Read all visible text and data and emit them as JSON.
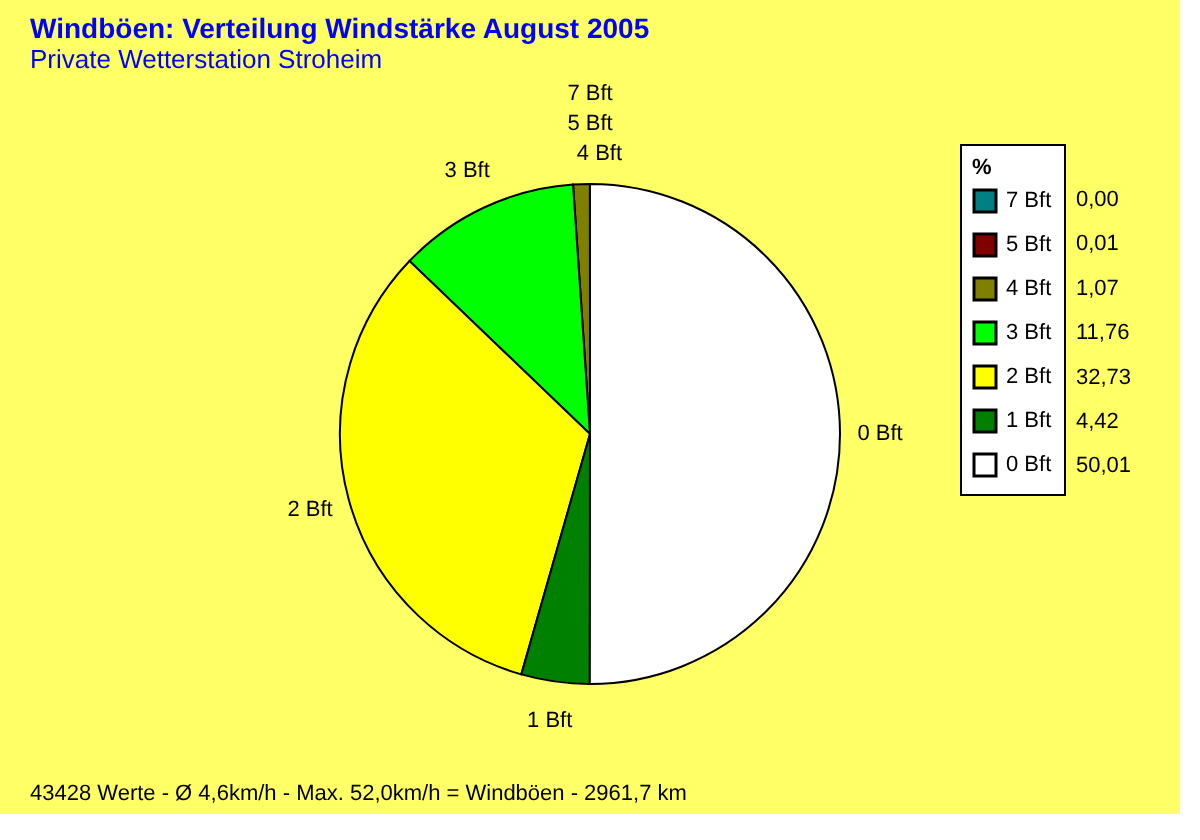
{
  "chart_data": {
    "type": "pie",
    "title": "Windböen: Verteilung Windstärke  August 2005",
    "subtitle": "Private Wetterstation Stroheim",
    "legend_title": "%",
    "categories": [
      "7 Bft",
      "5 Bft",
      "4 Bft",
      "3 Bft",
      "2 Bft",
      "1 Bft",
      "0 Bft"
    ],
    "values": [
      0.0,
      0.01,
      1.07,
      11.76,
      32.73,
      4.42,
      50.01
    ],
    "value_labels": [
      "0,00",
      "0,01",
      "1,07",
      "11,76",
      "32,73",
      "4,42",
      "50,01"
    ],
    "colors": [
      "#008080",
      "#800000",
      "#808000",
      "#00ff00",
      "#ffff00",
      "#008000",
      "#ffffff"
    ],
    "legend": "top right",
    "annotations": [
      "43428 Werte   -   Ø 4,6km/h  -  Max. 52,0km/h = Windböen   -   2961,7 km"
    ]
  }
}
